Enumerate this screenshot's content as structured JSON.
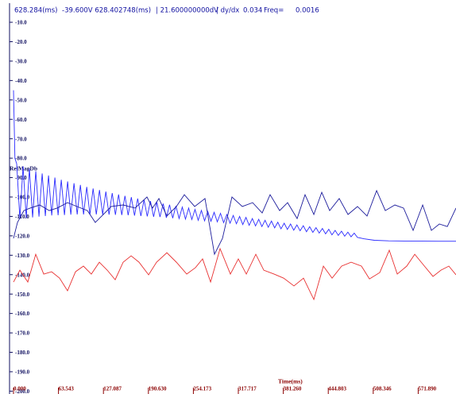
{
  "chart_data": {
    "type": "line",
    "header": [
      "628.284(ms)",
      "-39.600V 628.402748(ms)",
      "| 21.600000000dV",
      "| dy/dx",
      "0.034",
      "Freq=",
      "0.0016"
    ],
    "y_label": "RelMagDb",
    "x_label": "Time(ms)",
    "xlim": [
      0,
      625.3
    ],
    "ylim": [
      -200,
      0
    ],
    "xticks": [
      {
        "value": 0,
        "label": "0.000"
      },
      63.543,
      127.087,
      {
        "value": 190.63,
        "label": "190.630"
      },
      254.173,
      317.717,
      {
        "value": 381.26,
        "label": "381.260"
      },
      444.803,
      508.346,
      {
        "value": 571.89,
        "label": "571.890"
      }
    ],
    "yticks": [
      {
        "value": -10,
        "label": "-10.0"
      },
      {
        "value": -20,
        "label": "-20.0"
      },
      {
        "value": -30,
        "label": "-30.0"
      },
      {
        "value": -40,
        "label": "-40.0"
      },
      {
        "value": -50,
        "label": "-50.0"
      },
      {
        "value": -60,
        "label": "-60.0"
      },
      {
        "value": -70,
        "label": "-70.0"
      },
      {
        "value": -80,
        "label": "-80.0"
      },
      {
        "value": -90,
        "label": "-90.0"
      },
      {
        "value": -100,
        "label": "-100.0"
      },
      {
        "value": -110,
        "label": "-110.0"
      },
      {
        "value": -120,
        "label": "-120.0"
      },
      {
        "value": -130,
        "label": "-130.0"
      },
      {
        "value": -140,
        "label": "-140.0"
      },
      {
        "value": -150,
        "label": "-150.0"
      },
      {
        "value": -160,
        "label": "-160.0"
      },
      {
        "value": -170,
        "label": "-170.0"
      },
      {
        "value": -180,
        "label": "-180.0"
      },
      {
        "value": -190,
        "label": "-190.0"
      },
      {
        "value": -200,
        "label": "-200.0"
      }
    ],
    "series": [
      {
        "color": "#2a2aff",
        "x": [
          0,
          2,
          4.5,
          9,
          13.5,
          18,
          22.5,
          27,
          31.5,
          36,
          40.5,
          45,
          49.5,
          54,
          58.5,
          63,
          67.5,
          72,
          76.5,
          81,
          85.5,
          90,
          94.5,
          99,
          103.5,
          108,
          112.5,
          117,
          121.5,
          126,
          130.5,
          135,
          139.5,
          144,
          148.5,
          153,
          157.5,
          162,
          166.5,
          171,
          175.5,
          180,
          184.5,
          189,
          193.5,
          198,
          202.5,
          207,
          211.5,
          216,
          220.5,
          225,
          229.5,
          234,
          238.5,
          243,
          247.5,
          252,
          256.5,
          261,
          265.5,
          270,
          274.5,
          279,
          283.5,
          288,
          292.5,
          297,
          301.5,
          306,
          310.5,
          315,
          319.5,
          324,
          328.5,
          333,
          337.5,
          342,
          346.5,
          351,
          355.5,
          360,
          364.5,
          369,
          373.5,
          378,
          382.5,
          387,
          391.5,
          396,
          400.5,
          405,
          409.5,
          414,
          418.5,
          423,
          427.5,
          432,
          436.5,
          441,
          445.5,
          450,
          454.5,
          459,
          463.5,
          468,
          472.5,
          477,
          481.5,
          486,
          495,
          510,
          530,
          560,
          600,
          625.3
        ],
        "values": [
          -45,
          -80,
          -82.9,
          -111.3,
          -84.2,
          -110.8,
          -85.5,
          -110.5,
          -86.7,
          -110.1,
          -87.9,
          -109.8,
          -88.9,
          -109.5,
          -90.0,
          -109.4,
          -91.1,
          -109.3,
          -92.0,
          -109.1,
          -92.9,
          -109.0,
          -93.8,
          -109.0,
          -94.8,
          -109.0,
          -95.6,
          -109.0,
          -96.4,
          -109.0,
          -97.2,
          -109.1,
          -98.0,
          -109.2,
          -98.7,
          -109.3,
          -99.4,
          -109.4,
          -100.1,
          -109.6,
          -100.8,
          -109.8,
          -101.5,
          -110.0,
          -102.1,
          -110.2,
          -102.7,
          -110.3,
          -103.4,
          -110.7,
          -104.0,
          -110.9,
          -104.6,
          -111.1,
          -105.2,
          -111.4,
          -105.7,
          -111.6,
          -106.4,
          -112.0,
          -106.9,
          -112.3,
          -107.4,
          -112.5,
          -107.9,
          -112.8,
          -108.4,
          -113.2,
          -109.0,
          -113.5,
          -109.5,
          -113.8,
          -110.0,
          -114.2,
          -110.5,
          -114.6,
          -111.1,
          -114.9,
          -111.5,
          -115.2,
          -112.0,
          -115.6,
          -112.4,
          -115.9,
          -113.0,
          -116.4,
          -113.5,
          -116.7,
          -113.9,
          -117.1,
          -114.4,
          -117.4,
          -114.8,
          -117.9,
          -115.3,
          -118.2,
          -115.8,
          -118.6,
          -116.2,
          -119.0,
          -116.6,
          -119.5,
          -117.2,
          -119.8,
          -117.6,
          -120.2,
          -118.1,
          -120.5,
          -118.6,
          -120.8,
          -121.5,
          -122.3,
          -122.6,
          -122.7,
          -122.8,
          -122.8
        ]
      },
      {
        "color": "#1c1c9c",
        "x": [
          0,
          5.6,
          14.6,
          23.6,
          37.0,
          50.5,
          61.7,
          76.3,
          89.8,
          104.4,
          115.6,
          126.9,
          138.1,
          154.9,
          171.8,
          188.6,
          196.5,
          205.5,
          216.7,
          230.2,
          241.4,
          256.0,
          270.6,
          284.0,
          295.3,
          308.7,
          323.3,
          337.9,
          351.4,
          362.6,
          376.1,
          387.3,
          400.8,
          412.0,
          424.4,
          435.6,
          446.8,
          460.3,
          472.7,
          486.1,
          499.6,
          513.1,
          525.4,
          538.9,
          551.2,
          564.7,
          578.2,
          590.5,
          601.8,
          613.0,
          625.3
        ],
        "values": [
          -121.3,
          -113.1,
          -107.0,
          -105.7,
          -104.1,
          -107.0,
          -105.7,
          -102.9,
          -104.9,
          -107.0,
          -113.1,
          -109.0,
          -104.9,
          -104.1,
          -105.7,
          -100.0,
          -105.7,
          -100.8,
          -109.8,
          -104.9,
          -98.8,
          -104.9,
          -100.8,
          -129.5,
          -121.3,
          -100.0,
          -104.9,
          -102.9,
          -108.2,
          -98.8,
          -107.0,
          -102.9,
          -111.1,
          -98.8,
          -109.0,
          -97.6,
          -107.0,
          -100.8,
          -109.0,
          -104.9,
          -109.8,
          -96.7,
          -107.0,
          -104.1,
          -105.7,
          -117.2,
          -104.1,
          -117.2,
          -113.9,
          -115.2,
          -105.7
        ]
      },
      {
        "color": "#e83030",
        "x": [
          0,
          9.0,
          20.2,
          31.4,
          42.7,
          53.9,
          65.1,
          76.3,
          87.6,
          98.8,
          110.0,
          121.3,
          132.5,
          143.7,
          154.9,
          166.2,
          177.4,
          190.9,
          202.1,
          216.7,
          230.2,
          244.8,
          257.1,
          267.2,
          278.5,
          291.9,
          306.5,
          317.7,
          329.0,
          342.4,
          353.7,
          368.3,
          381.8,
          396.3,
          409.8,
          424.4,
          437.9,
          450.2,
          463.7,
          477.1,
          491.7,
          503.0,
          517.6,
          531.0,
          542.3,
          555.7,
          567.0,
          581.6,
          592.8,
          604.0,
          615.2,
          625.3
        ],
        "values": [
          -143.8,
          -137.7,
          -143.8,
          -129.5,
          -139.7,
          -138.5,
          -141.8,
          -148.3,
          -138.5,
          -135.6,
          -139.7,
          -133.6,
          -137.7,
          -142.6,
          -133.6,
          -130.3,
          -133.6,
          -140.1,
          -133.6,
          -128.7,
          -133.6,
          -139.7,
          -136.4,
          -131.9,
          -143.8,
          -126.6,
          -139.7,
          -131.9,
          -139.7,
          -129.5,
          -137.7,
          -139.7,
          -141.8,
          -145.8,
          -141.8,
          -152.8,
          -135.6,
          -141.8,
          -135.6,
          -133.6,
          -135.6,
          -142.2,
          -138.9,
          -127.4,
          -139.7,
          -135.6,
          -129.5,
          -136.0,
          -140.9,
          -137.7,
          -135.6,
          -140.1
        ]
      }
    ]
  }
}
